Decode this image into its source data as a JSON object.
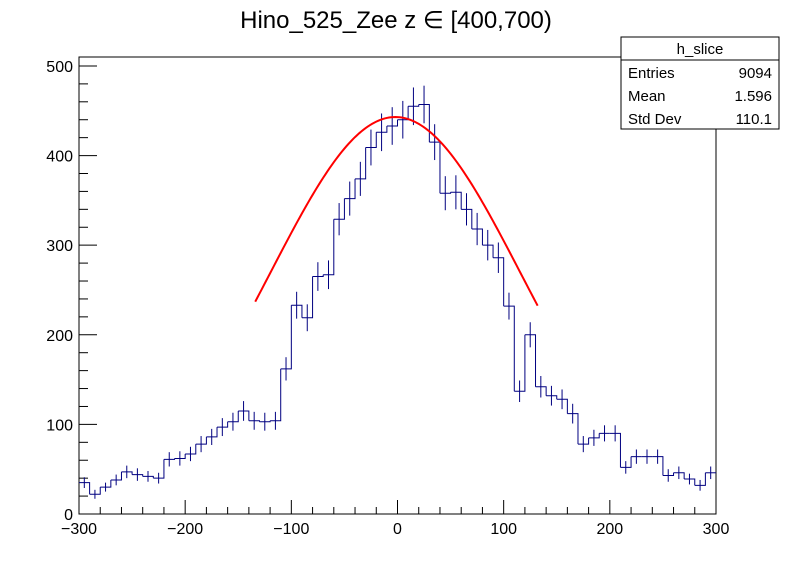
{
  "chart_data": {
    "type": "bar",
    "title": "Hino_525_Zee z  ∈ [400,700)",
    "xlabel": "",
    "ylabel": "",
    "xlim": [
      -300,
      300
    ],
    "ylim": [
      0,
      510
    ],
    "x_ticks": [
      -300,
      -200,
      -100,
      0,
      100,
      200,
      300
    ],
    "y_ticks": [
      0,
      100,
      200,
      300,
      400,
      500
    ],
    "grid": false,
    "legend": "none",
    "line_color": "#000080",
    "fit_color": "#ff0000",
    "bin_width": 10,
    "bins": [
      {
        "x": -295,
        "y": 35,
        "err": 6
      },
      {
        "x": -285,
        "y": 22,
        "err": 5
      },
      {
        "x": -275,
        "y": 30,
        "err": 5
      },
      {
        "x": -265,
        "y": 38,
        "err": 6
      },
      {
        "x": -255,
        "y": 47,
        "err": 7
      },
      {
        "x": -245,
        "y": 44,
        "err": 7
      },
      {
        "x": -235,
        "y": 42,
        "err": 6
      },
      {
        "x": -225,
        "y": 40,
        "err": 6
      },
      {
        "x": -215,
        "y": 61,
        "err": 8
      },
      {
        "x": -205,
        "y": 62,
        "err": 8
      },
      {
        "x": -195,
        "y": 67,
        "err": 8
      },
      {
        "x": -185,
        "y": 78,
        "err": 9
      },
      {
        "x": -175,
        "y": 86,
        "err": 9
      },
      {
        "x": -165,
        "y": 97,
        "err": 10
      },
      {
        "x": -155,
        "y": 103,
        "err": 10
      },
      {
        "x": -145,
        "y": 115,
        "err": 11
      },
      {
        "x": -135,
        "y": 104,
        "err": 10
      },
      {
        "x": -125,
        "y": 103,
        "err": 10
      },
      {
        "x": -115,
        "y": 104,
        "err": 10
      },
      {
        "x": -105,
        "y": 162,
        "err": 13
      },
      {
        "x": -95,
        "y": 233,
        "err": 15
      },
      {
        "x": -85,
        "y": 219,
        "err": 15
      },
      {
        "x": -75,
        "y": 265,
        "err": 16
      },
      {
        "x": -65,
        "y": 267,
        "err": 16
      },
      {
        "x": -55,
        "y": 329,
        "err": 18
      },
      {
        "x": -45,
        "y": 352,
        "err": 19
      },
      {
        "x": -35,
        "y": 374,
        "err": 19
      },
      {
        "x": -25,
        "y": 409,
        "err": 20
      },
      {
        "x": -15,
        "y": 426,
        "err": 21
      },
      {
        "x": -5,
        "y": 433,
        "err": 21
      },
      {
        "x": 5,
        "y": 440,
        "err": 21
      },
      {
        "x": 15,
        "y": 455,
        "err": 21
      },
      {
        "x": 25,
        "y": 457,
        "err": 21
      },
      {
        "x": 35,
        "y": 415,
        "err": 20
      },
      {
        "x": 45,
        "y": 358,
        "err": 19
      },
      {
        "x": 55,
        "y": 359,
        "err": 19
      },
      {
        "x": 65,
        "y": 340,
        "err": 18
      },
      {
        "x": 75,
        "y": 318,
        "err": 18
      },
      {
        "x": 85,
        "y": 300,
        "err": 17
      },
      {
        "x": 95,
        "y": 286,
        "err": 17
      },
      {
        "x": 105,
        "y": 232,
        "err": 15
      },
      {
        "x": 115,
        "y": 137,
        "err": 12
      },
      {
        "x": 125,
        "y": 200,
        "err": 14
      },
      {
        "x": 135,
        "y": 142,
        "err": 12
      },
      {
        "x": 145,
        "y": 132,
        "err": 11
      },
      {
        "x": 155,
        "y": 128,
        "err": 11
      },
      {
        "x": 165,
        "y": 112,
        "err": 11
      },
      {
        "x": 175,
        "y": 78,
        "err": 9
      },
      {
        "x": 185,
        "y": 85,
        "err": 9
      },
      {
        "x": 195,
        "y": 90,
        "err": 9
      },
      {
        "x": 205,
        "y": 90,
        "err": 9
      },
      {
        "x": 215,
        "y": 52,
        "err": 7
      },
      {
        "x": 225,
        "y": 64,
        "err": 8
      },
      {
        "x": 235,
        "y": 64,
        "err": 8
      },
      {
        "x": 245,
        "y": 64,
        "err": 8
      },
      {
        "x": 255,
        "y": 43,
        "err": 7
      },
      {
        "x": 265,
        "y": 46,
        "err": 7
      },
      {
        "x": 275,
        "y": 39,
        "err": 6
      },
      {
        "x": 285,
        "y": 32,
        "err": 6
      },
      {
        "x": 295,
        "y": 46,
        "err": 7
      }
    ],
    "fit": {
      "function": "gaus",
      "constant": 443,
      "mean": -2,
      "sigma": 118,
      "range": [
        -134,
        132
      ]
    },
    "stats_box": {
      "name": "h_slice",
      "rows": [
        {
          "label": "Entries",
          "value": "9094"
        },
        {
          "label": "Mean",
          "value": "1.596"
        },
        {
          "label": "Std Dev",
          "value": "110.1"
        }
      ]
    }
  }
}
